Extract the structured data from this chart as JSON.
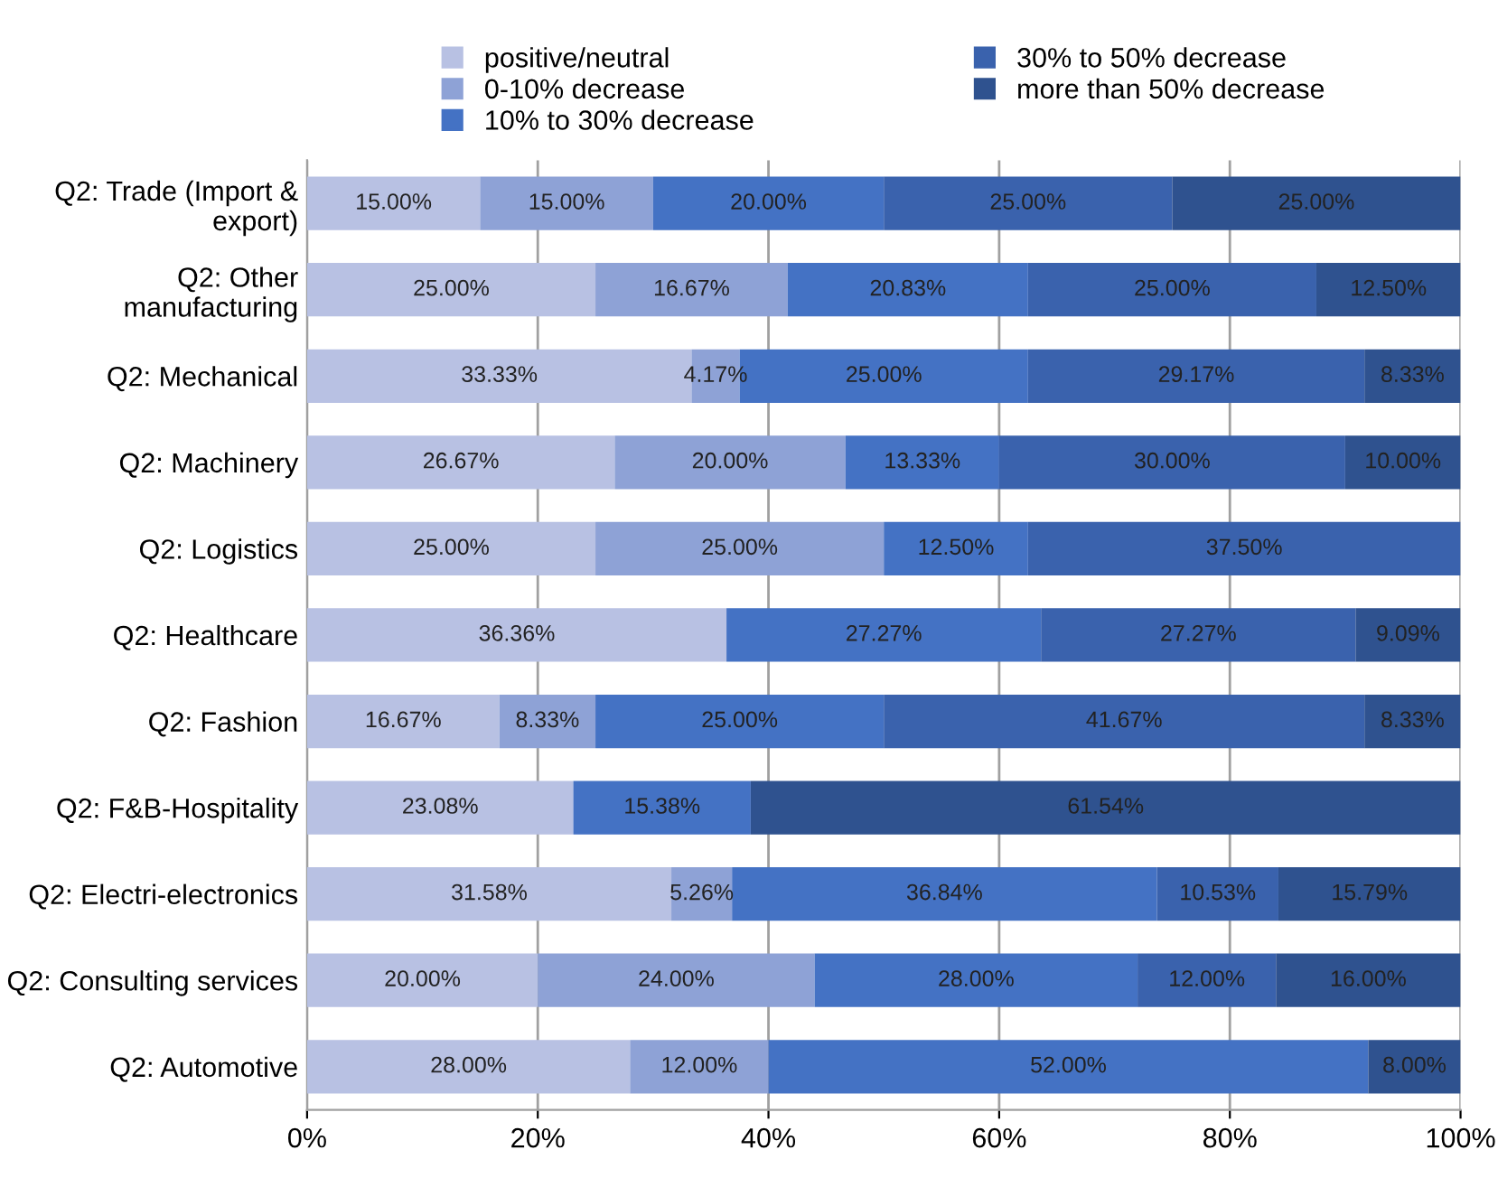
{
  "chart_data": {
    "type": "bar",
    "orientation": "horizontal",
    "stacked": true,
    "legend": "top",
    "grid": "x",
    "categories": [
      "Q2: Trade (Import & export)",
      "Q2: Other manufacturing",
      "Q2: Mechanical",
      "Q2: Machinery",
      "Q2: Logistics",
      "Q2: Healthcare",
      "Q2: Fashion",
      "Q2: F&B-Hospitality",
      "Q2: Electri-electronics",
      "Q2: Consulting services",
      "Q2: Automotive"
    ],
    "xlim": [
      0,
      100
    ],
    "xticks": [
      {
        "value": 0,
        "label": "0%"
      },
      {
        "value": 20,
        "label": "20%"
      },
      {
        "value": 40,
        "label": "40%"
      },
      {
        "value": 60,
        "label": "60%"
      },
      {
        "value": 80,
        "label": "80%"
      },
      {
        "value": 100,
        "label": "100%"
      }
    ],
    "series": [
      {
        "name": "positive/neutral",
        "color": "#b8c1e3",
        "values": [
          15.0,
          25.0,
          33.33,
          26.67,
          25.0,
          36.36,
          16.67,
          23.08,
          31.58,
          20.0,
          28.0
        ],
        "value_labels": [
          "15.00%",
          "25.00%",
          "33.33%",
          "26.67%",
          "25.00%",
          "36.36%",
          "16.67%",
          "23.08%",
          "31.58%",
          "20.00%",
          "28.00%"
        ]
      },
      {
        "name": "0-10% decrease",
        "color": "#8ea2d6",
        "values": [
          15.0,
          16.67,
          4.17,
          20.0,
          25.0,
          0,
          8.33,
          0,
          5.26,
          24.0,
          12.0
        ],
        "value_labels": [
          "15.00%",
          "16.67%",
          "4.17%",
          "20.00%",
          "25.00%",
          null,
          "8.33%",
          null,
          "5.26%",
          "24.00%",
          "12.00%"
        ]
      },
      {
        "name": "10% to 30% decrease",
        "color": "#4472c4",
        "values": [
          20.0,
          20.83,
          25.0,
          13.33,
          12.5,
          27.27,
          25.0,
          15.38,
          36.84,
          28.0,
          52.0
        ],
        "value_labels": [
          "20.00%",
          "20.83%",
          "25.00%",
          "13.33%",
          "12.50%",
          "27.27%",
          "25.00%",
          "15.38%",
          "36.84%",
          "28.00%",
          "52.00%"
        ]
      },
      {
        "name": "30% to 50% decrease",
        "color": "#3a62ad",
        "values": [
          25.0,
          25.0,
          29.17,
          30.0,
          37.5,
          27.27,
          41.67,
          0,
          10.53,
          12.0,
          0
        ],
        "value_labels": [
          "25.00%",
          "25.00%",
          "29.17%",
          "30.00%",
          "37.50%",
          "27.27%",
          "41.67%",
          null,
          "10.53%",
          "12.00%",
          null
        ]
      },
      {
        "name": "more than 50% decrease",
        "color": "#2f528f",
        "values": [
          25.0,
          12.5,
          8.33,
          10.0,
          0,
          9.09,
          8.33,
          61.54,
          15.79,
          16.0,
          8.0
        ],
        "value_labels": [
          "25.00%",
          "12.50%",
          "8.33%",
          "10.00%",
          null,
          "9.09%",
          "8.33%",
          "61.54%",
          "15.79%",
          "16.00%",
          "8.00%"
        ]
      }
    ]
  }
}
